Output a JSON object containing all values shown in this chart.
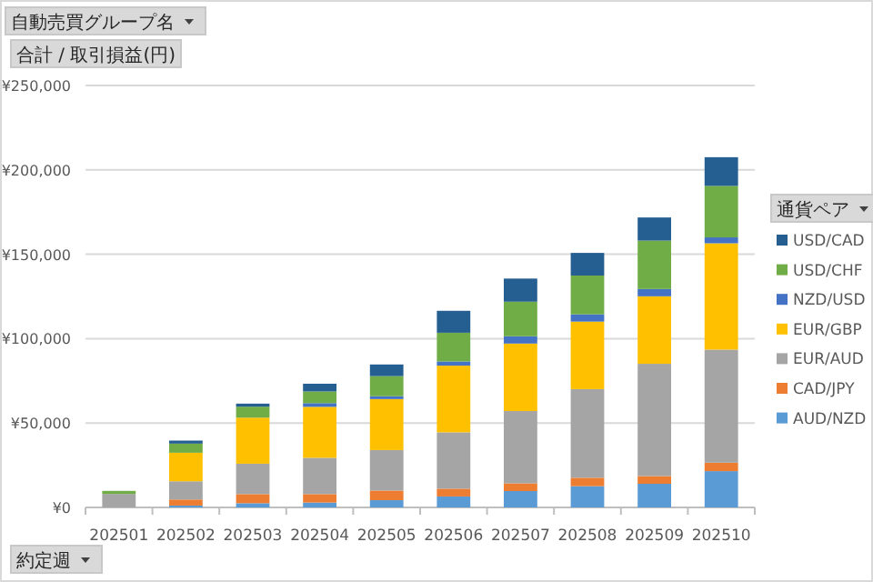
{
  "chart_data": {
    "type": "bar",
    "stacked": true,
    "annotations": [
      "自動売買グループ名"
    ],
    "ylabel": "合計 / 取引損益(円)",
    "xlabel": "約定週",
    "legend_title": "通貨ペア",
    "categories": [
      "202501",
      "202502",
      "202503",
      "202504",
      "202505",
      "202506",
      "202507",
      "202508",
      "202509",
      "202510"
    ],
    "series": [
      {
        "name": "AUD/NZD",
        "color": "#5b9bd5",
        "values": [
          0,
          1100,
          2500,
          2900,
          4300,
          6500,
          9700,
          12600,
          14000,
          21500
        ]
      },
      {
        "name": "CAD/JPY",
        "color": "#ed7d31",
        "values": [
          0,
          3600,
          5400,
          5000,
          5700,
          4600,
          4600,
          5000,
          4600,
          5000
        ]
      },
      {
        "name": "EUR/AUD",
        "color": "#a5a5a5",
        "values": [
          8000,
          10800,
          18000,
          21500,
          24000,
          33400,
          42800,
          52500,
          66500,
          67000
        ]
      },
      {
        "name": "EUR/GBP",
        "color": "#ffc000",
        "values": [
          0,
          16900,
          27300,
          30200,
          30200,
          39500,
          40000,
          40000,
          40000,
          63000
        ]
      },
      {
        "name": "NZD/USD",
        "color": "#4472c4",
        "values": [
          0,
          0,
          0,
          2200,
          1700,
          2500,
          4300,
          4300,
          4300,
          3500
        ]
      },
      {
        "name": "USD/CHF",
        "color": "#70ad47",
        "values": [
          1800,
          5400,
          6500,
          6900,
          11900,
          17000,
          20500,
          23000,
          28700,
          30500
        ]
      },
      {
        "name": "USD/CAD",
        "color": "#255e91",
        "values": [
          0,
          1800,
          1800,
          4600,
          6900,
          13000,
          13700,
          13400,
          13700,
          17000
        ]
      }
    ],
    "ylim": [
      0,
      250000
    ],
    "yticks": [
      {
        "value": 0,
        "label": "¥0"
      },
      {
        "value": 50000,
        "label": "¥50,000"
      },
      {
        "value": 100000,
        "label": "¥100,000"
      },
      {
        "value": 150000,
        "label": "¥150,000"
      },
      {
        "value": 200000,
        "label": "¥200,000"
      },
      {
        "value": 250000,
        "label": "¥250,000"
      }
    ],
    "grid": "y",
    "legend": "right"
  }
}
